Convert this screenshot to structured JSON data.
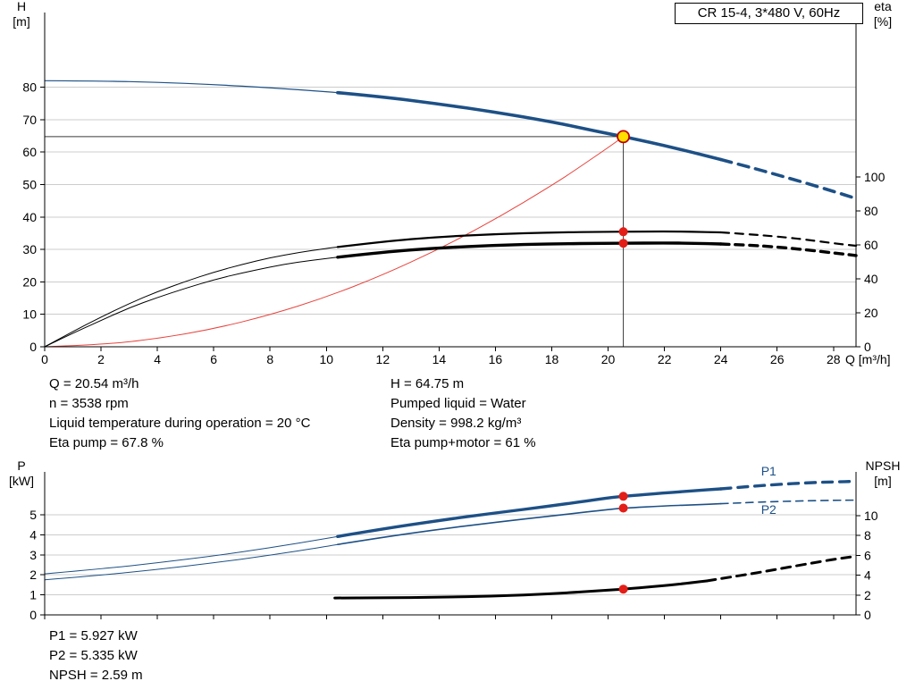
{
  "info_top": {
    "left": [
      "Q = 20.54 m³/h",
      "n = 3538 rpm",
      "Liquid temperature during operation = 20 °C",
      "Eta pump = 67.8 %"
    ],
    "right": [
      "H = 64.75 m",
      "Pumped liquid = Water",
      "Density = 998.2 kg/m³",
      "Eta pump+motor = 61 %"
    ]
  },
  "info_bottom": [
    "P1 = 5.927 kW",
    "P2 = 5.335 kW",
    "NPSH = 2.59 m"
  ],
  "chart_data": [
    {
      "type": "line",
      "title": "CR 15-4, 3*480 V, 60Hz",
      "x": {
        "label": "Q [m³/h]",
        "range": [
          0,
          28.8
        ],
        "ticks": [
          0,
          2,
          4,
          6,
          8,
          10,
          12,
          14,
          16,
          18,
          20,
          22,
          24,
          26,
          28
        ]
      },
      "y_left": {
        "label": [
          "H",
          "[m]"
        ],
        "range": [
          0,
          103
        ],
        "ticks": [
          0,
          10,
          20,
          30,
          40,
          50,
          60,
          70,
          80
        ]
      },
      "y_right": {
        "label": [
          "eta",
          "[%]"
        ],
        "range": [
          0,
          197
        ],
        "ticks": [
          0,
          20,
          40,
          60,
          80,
          100
        ]
      },
      "grid": true,
      "legend": "none",
      "series": [
        {
          "name": "head-curve-low-flow",
          "axis": "left",
          "color": "#1d5086",
          "width": 1.2,
          "points": [
            [
              0,
              82
            ],
            [
              2,
              81.9
            ],
            [
              4,
              81.5
            ],
            [
              6,
              80.8
            ],
            [
              8,
              79.8
            ],
            [
              10,
              78.6
            ],
            [
              10.4,
              78.3
            ]
          ]
        },
        {
          "name": "head-curve",
          "axis": "left",
          "color": "#1d5086",
          "width": 3.6,
          "points": [
            [
              10.4,
              78.3
            ],
            [
              12,
              77
            ],
            [
              14,
              74.8
            ],
            [
              16,
              72.3
            ],
            [
              18,
              69.3
            ],
            [
              19,
              67.5
            ],
            [
              20,
              65.7
            ],
            [
              20.54,
              64.75
            ],
            [
              21,
              63.9
            ],
            [
              22,
              62
            ],
            [
              23,
              59.9
            ],
            [
              24,
              57.7
            ]
          ]
        },
        {
          "name": "head-curve-extrapolated",
          "axis": "left",
          "color": "#1d5086",
          "width": 3.6,
          "dash": "12 8",
          "points": [
            [
              24,
              57.7
            ],
            [
              25,
              55.4
            ],
            [
              26,
              53
            ],
            [
              27,
              50.5
            ],
            [
              28,
              47.9
            ],
            [
              28.8,
              45.7
            ]
          ]
        },
        {
          "name": "system-curve",
          "axis": "left",
          "color": "#e8433c",
          "width": 1,
          "points": [
            [
              0,
              0
            ],
            [
              2,
              0.6
            ],
            [
              4,
              2.5
            ],
            [
              6,
              5.5
            ],
            [
              8,
              9.8
            ],
            [
              10,
              15.3
            ],
            [
              12,
              22.1
            ],
            [
              14,
              30.1
            ],
            [
              16,
              39.3
            ],
            [
              18,
              49.7
            ],
            [
              19,
              55.4
            ],
            [
              20,
              61.4
            ],
            [
              20.54,
              64.75
            ]
          ]
        },
        {
          "name": "eta-pump-low-flow",
          "axis": "right",
          "color": "#000000",
          "width": 1,
          "points": [
            [
              0,
              0
            ],
            [
              1,
              9
            ],
            [
              2,
              17.5
            ],
            [
              3,
              25.5
            ],
            [
              4,
              32.5
            ],
            [
              5,
              38.5
            ],
            [
              6,
              44
            ],
            [
              7,
              48.5
            ],
            [
              8,
              52.5
            ],
            [
              9,
              55.5
            ],
            [
              10,
              58
            ],
            [
              10.4,
              58.8
            ]
          ]
        },
        {
          "name": "eta-pump-curve",
          "axis": "right",
          "color": "#000000",
          "width": 2.2,
          "points": [
            [
              10.4,
              58.8
            ],
            [
              12,
              62
            ],
            [
              14,
              64.8
            ],
            [
              16,
              66.4
            ],
            [
              18,
              67.4
            ],
            [
              20,
              67.8
            ],
            [
              20.54,
              67.8
            ],
            [
              22,
              68
            ],
            [
              23,
              67.8
            ],
            [
              24,
              67.4
            ]
          ]
        },
        {
          "name": "eta-pump-extrapolated",
          "axis": "right",
          "color": "#000000",
          "width": 2.2,
          "dash": "9 7",
          "points": [
            [
              24,
              67.4
            ],
            [
              25,
              66.3
            ],
            [
              26,
              65
            ],
            [
              27,
              63.2
            ],
            [
              28,
              61
            ],
            [
              28.8,
              59.5
            ]
          ]
        },
        {
          "name": "eta-pump-motor-low-flow",
          "axis": "right",
          "color": "#000000",
          "width": 1,
          "points": [
            [
              0,
              0
            ],
            [
              1,
              8
            ],
            [
              2,
              15.5
            ],
            [
              3,
              23
            ],
            [
              4,
              29
            ],
            [
              5,
              34.5
            ],
            [
              6,
              39.5
            ],
            [
              7,
              43.5
            ],
            [
              8,
              47
            ],
            [
              9,
              50
            ],
            [
              10,
              52
            ],
            [
              10.4,
              52.8
            ]
          ]
        },
        {
          "name": "eta-pump-motor-curve",
          "axis": "right",
          "color": "#000000",
          "width": 3.4,
          "points": [
            [
              10.4,
              52.8
            ],
            [
              12,
              55.8
            ],
            [
              14,
              58.3
            ],
            [
              16,
              59.8
            ],
            [
              18,
              60.7
            ],
            [
              20,
              61
            ],
            [
              20.54,
              61
            ],
            [
              22,
              61.2
            ],
            [
              23,
              61
            ],
            [
              24,
              60.6
            ]
          ]
        },
        {
          "name": "eta-pump-motor-extrapolated",
          "axis": "right",
          "color": "#000000",
          "width": 3.4,
          "dash": "9 7",
          "points": [
            [
              24,
              60.6
            ],
            [
              25,
              59.9
            ],
            [
              26,
              58.8
            ],
            [
              27,
              57.2
            ],
            [
              28,
              55.3
            ],
            [
              28.8,
              53.8
            ]
          ]
        }
      ],
      "duty_point": {
        "q": 20.54,
        "v": 64.75,
        "axis": "left",
        "fill": "#ffdf00",
        "ring": "#c00000"
      },
      "markers": [
        {
          "name": "eta-pump-duty-dot",
          "q": 20.54,
          "v": 67.8,
          "axis": "right",
          "fill": "#e31e18"
        },
        {
          "name": "eta-pump-motor-duty-dot",
          "q": 20.54,
          "v": 61,
          "axis": "right",
          "fill": "#e31e18"
        }
      ]
    },
    {
      "type": "line",
      "x": {
        "label": "",
        "range": [
          0,
          28.8
        ],
        "ticks": [
          0,
          2,
          4,
          6,
          8,
          10,
          12,
          14,
          16,
          18,
          20,
          22,
          24,
          26,
          28
        ]
      },
      "y_left": {
        "label": [
          "P",
          "[kW]"
        ],
        "range": [
          0,
          7.15
        ],
        "ticks": [
          0,
          1,
          2,
          3,
          4,
          5
        ]
      },
      "y_right": {
        "label": [
          "NPSH",
          "[m]"
        ],
        "range": [
          0,
          14.4
        ],
        "ticks": [
          0,
          2,
          4,
          6,
          8,
          10
        ]
      },
      "grid": true,
      "legend": "inline",
      "series": [
        {
          "name": "p1-low-flow",
          "axis": "left",
          "color": "#1d5086",
          "width": 1,
          "points": [
            [
              0,
              2.05
            ],
            [
              2,
              2.3
            ],
            [
              4,
              2.6
            ],
            [
              6,
              2.95
            ],
            [
              8,
              3.35
            ],
            [
              10,
              3.82
            ],
            [
              10.4,
              3.92
            ]
          ]
        },
        {
          "name": "p1-curve",
          "axis": "left",
          "color": "#1d5086",
          "width": 3.4,
          "points": [
            [
              10.4,
              3.92
            ],
            [
              12,
              4.3
            ],
            [
              14,
              4.72
            ],
            [
              16,
              5.1
            ],
            [
              18,
              5.45
            ],
            [
              20,
              5.85
            ],
            [
              20.54,
              5.93
            ],
            [
              22,
              6.1
            ],
            [
              23,
              6.2
            ],
            [
              24,
              6.3
            ]
          ]
        },
        {
          "name": "p1-extrapolated",
          "axis": "left",
          "color": "#1d5086",
          "width": 3.4,
          "dash": "11 8",
          "points": [
            [
              24,
              6.3
            ],
            [
              25,
              6.42
            ],
            [
              26,
              6.52
            ],
            [
              27,
              6.6
            ],
            [
              28,
              6.65
            ],
            [
              28.8,
              6.68
            ]
          ]
        },
        {
          "name": "p2-low-flow",
          "axis": "left",
          "color": "#1d5086",
          "width": 1,
          "points": [
            [
              0,
              1.75
            ],
            [
              2,
              1.98
            ],
            [
              4,
              2.27
            ],
            [
              6,
              2.6
            ],
            [
              8,
              2.98
            ],
            [
              10,
              3.42
            ],
            [
              10.4,
              3.52
            ]
          ]
        },
        {
          "name": "p2-curve",
          "axis": "left",
          "color": "#1d5086",
          "width": 1.6,
          "points": [
            [
              10.4,
              3.52
            ],
            [
              12,
              3.88
            ],
            [
              14,
              4.28
            ],
            [
              16,
              4.63
            ],
            [
              18,
              4.95
            ],
            [
              20,
              5.27
            ],
            [
              20.54,
              5.34
            ],
            [
              22,
              5.45
            ],
            [
              23,
              5.5
            ],
            [
              24,
              5.56
            ]
          ]
        },
        {
          "name": "p2-extrapolated",
          "axis": "left",
          "color": "#1d5086",
          "width": 1.6,
          "dash": "8 6",
          "points": [
            [
              24,
              5.56
            ],
            [
              25,
              5.62
            ],
            [
              26,
              5.67
            ],
            [
              27,
              5.7
            ],
            [
              28,
              5.73
            ],
            [
              28.8,
              5.74
            ]
          ]
        },
        {
          "name": "npsh-curve",
          "axis": "right",
          "color": "#000000",
          "width": 3,
          "points": [
            [
              10.3,
              1.7
            ],
            [
              12,
              1.72
            ],
            [
              14,
              1.78
            ],
            [
              16,
              1.9
            ],
            [
              18,
              2.12
            ],
            [
              20,
              2.48
            ],
            [
              20.54,
              2.59
            ],
            [
              22,
              2.95
            ],
            [
              23,
              3.25
            ],
            [
              23.5,
              3.42
            ]
          ]
        },
        {
          "name": "npsh-extrapolated",
          "axis": "right",
          "color": "#000000",
          "width": 3,
          "dash": "10 7",
          "points": [
            [
              23.5,
              3.42
            ],
            [
              24,
              3.65
            ],
            [
              25,
              4.1
            ],
            [
              26,
              4.6
            ],
            [
              27,
              5.1
            ],
            [
              28,
              5.6
            ],
            [
              28.8,
              5.9
            ]
          ]
        }
      ],
      "markers": [
        {
          "name": "p1-duty-dot",
          "q": 20.54,
          "v": 5.93,
          "axis": "left",
          "fill": "#e31e18"
        },
        {
          "name": "p2-duty-dot",
          "q": 20.54,
          "v": 5.34,
          "axis": "left",
          "fill": "#e31e18"
        },
        {
          "name": "npsh-duty-dot",
          "q": 20.54,
          "v": 2.59,
          "axis": "right",
          "fill": "#e31e18"
        }
      ],
      "annotations": [
        {
          "text": "P1",
          "q": 25.7,
          "v": 6.98,
          "axis": "left",
          "color": "#1d5086"
        },
        {
          "text": "P2",
          "q": 25.7,
          "v": 5.05,
          "axis": "left",
          "color": "#1d5086"
        }
      ]
    }
  ]
}
